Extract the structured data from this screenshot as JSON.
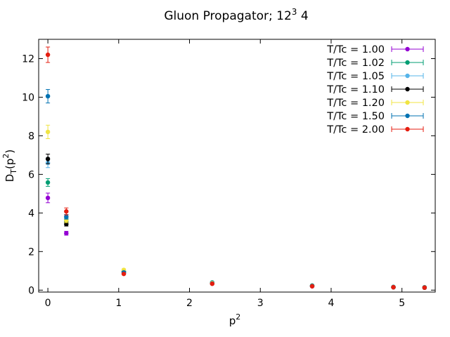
{
  "chart_data": {
    "type": "scatter",
    "title_main": "Gluon Propagator; 12",
    "title_sup": "3",
    "title_tail": " 4",
    "xlabel_main": "p",
    "xlabel_sup": "2",
    "ylabel_main": "D",
    "ylabel_sub": "T",
    "ylabel_tail": "(p",
    "ylabel_sup": "2",
    "ylabel_close": ")",
    "xlim": [
      -0.13,
      5.47
    ],
    "ylim": [
      -0.1,
      13.0
    ],
    "xticks": [
      0,
      1,
      2,
      3,
      4,
      5
    ],
    "yticks": [
      0,
      2,
      4,
      6,
      8,
      10,
      12
    ],
    "grid": false,
    "legend_position": "top-right",
    "x": [
      0,
      0.2602,
      1.0718,
      2.3205,
      3.7321,
      4.8794,
      5.3191
    ],
    "series": [
      {
        "name": "T/Tc = 1.00",
        "color": "#9400d3",
        "y": [
          4.78,
          2.95,
          0.86,
          0.34,
          0.2,
          0.15,
          0.13
        ],
        "err": [
          0.25,
          0.1,
          0.03,
          0.02,
          0.01,
          0.01,
          0.01
        ]
      },
      {
        "name": "T/Tc = 1.02",
        "color": "#009e73",
        "y": [
          5.58,
          3.58,
          0.95,
          0.4,
          0.24,
          0.17,
          0.15
        ],
        "err": [
          0.2,
          0.1,
          0.03,
          0.02,
          0.01,
          0.01,
          0.01
        ]
      },
      {
        "name": "T/Tc = 1.05",
        "color": "#56b4e9",
        "y": [
          6.6,
          3.72,
          1.0,
          0.38,
          0.22,
          0.16,
          0.14
        ],
        "err": [
          0.25,
          0.12,
          0.03,
          0.02,
          0.01,
          0.01,
          0.01
        ]
      },
      {
        "name": "T/Tc = 1.10",
        "color": "#000000",
        "y": [
          6.8,
          3.42,
          0.94,
          0.35,
          0.21,
          0.15,
          0.13
        ],
        "err": [
          0.25,
          0.1,
          0.03,
          0.02,
          0.01,
          0.01,
          0.01
        ]
      },
      {
        "name": "T/Tc = 1.20",
        "color": "#f0e442",
        "y": [
          8.2,
          3.62,
          1.05,
          0.36,
          0.21,
          0.15,
          0.13
        ],
        "err": [
          0.35,
          0.12,
          0.04,
          0.02,
          0.01,
          0.01,
          0.01
        ]
      },
      {
        "name": "T/Tc = 1.50",
        "color": "#0072b2",
        "y": [
          10.05,
          3.8,
          0.92,
          0.34,
          0.21,
          0.15,
          0.13
        ],
        "err": [
          0.35,
          0.12,
          0.03,
          0.02,
          0.01,
          0.01,
          0.01
        ]
      },
      {
        "name": "T/Tc = 2.00",
        "color": "#e51e10",
        "y": [
          12.2,
          4.08,
          0.84,
          0.33,
          0.2,
          0.15,
          0.13
        ],
        "err": [
          0.4,
          0.18,
          0.03,
          0.02,
          0.01,
          0.01,
          0.01
        ]
      }
    ]
  }
}
